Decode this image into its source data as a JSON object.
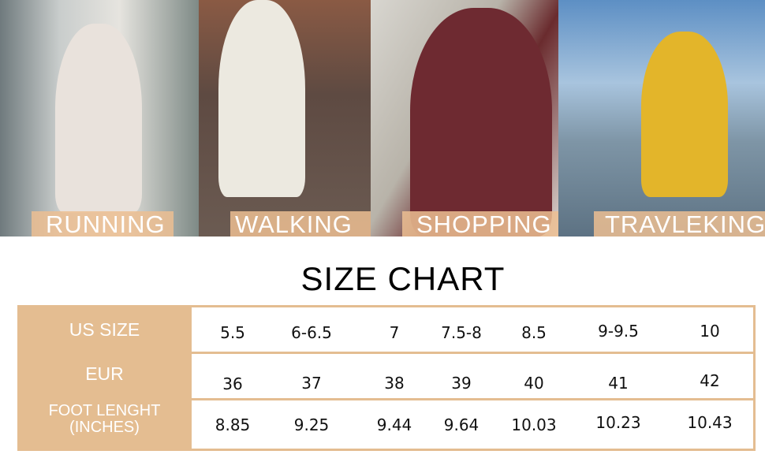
{
  "banner": {
    "labels": [
      "RUNNING",
      "WALKING",
      "SHOPPING",
      "TRAVLEKING"
    ]
  },
  "title": "SIZE CHART",
  "colors": {
    "accent": "#e4bd91"
  },
  "table": {
    "rows": [
      {
        "header": "US SIZE",
        "values": [
          "5.5",
          "6-6.5",
          "7",
          "7.5-8",
          "8.5",
          "9-9.5",
          "10"
        ]
      },
      {
        "header": "EUR",
        "values": [
          "36",
          "37",
          "38",
          "39",
          "40",
          "41",
          "42"
        ]
      },
      {
        "header": "FOOT LENGHT",
        "header2": "(INCHES)",
        "values": [
          "8.85",
          "9.25",
          "9.44",
          "9.64",
          "10.03",
          "10.23",
          "10.43"
        ]
      }
    ]
  }
}
